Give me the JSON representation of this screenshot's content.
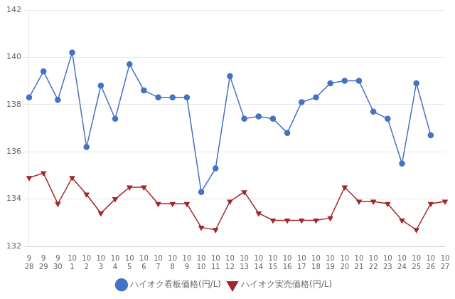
{
  "chart_data": {
    "type": "line",
    "categories": [
      "9\n28",
      "9\n29",
      "9\n30",
      "10\n1",
      "10\n2",
      "10\n3",
      "10\n4",
      "10\n5",
      "10\n6",
      "10\n7",
      "10\n8",
      "10\n9",
      "10\n10",
      "10\n11",
      "10\n12",
      "10\n13",
      "10\n14",
      "10\n15",
      "10\n16",
      "10\n17",
      "10\n18",
      "10\n19",
      "10\n20",
      "10\n21",
      "10\n22",
      "10\n23",
      "10\n24",
      "10\n25",
      "10\n26",
      "10\n27"
    ],
    "series": [
      {
        "name": "ハイオク看板価格(円/L)",
        "color": "#4472C4",
        "marker": "circle",
        "values": [
          138.3,
          139.4,
          138.2,
          140.2,
          136.2,
          138.8,
          137.4,
          139.7,
          138.6,
          138.3,
          138.3,
          138.3,
          134.3,
          135.3,
          139.2,
          137.4,
          137.5,
          137.4,
          136.8,
          138.1,
          138.3,
          138.9,
          139.0,
          139.0,
          137.7,
          137.4,
          135.5,
          138.9,
          136.7,
          null
        ]
      },
      {
        "name": "ハイオク実売価格(円/L)",
        "color": "#A0282A",
        "marker": "triangle_down",
        "values": [
          134.9,
          135.1,
          133.8,
          134.9,
          134.2,
          133.4,
          134.0,
          134.5,
          134.5,
          133.8,
          133.8,
          133.8,
          132.8,
          132.7,
          133.9,
          134.3,
          133.4,
          133.1,
          133.1,
          133.1,
          133.1,
          133.2,
          134.5,
          133.9,
          133.9,
          133.8,
          133.1,
          132.7,
          133.8,
          133.9
        ]
      }
    ],
    "ylim": [
      132,
      142
    ],
    "yticks": [
      132,
      134,
      136,
      138,
      140,
      142
    ],
    "grid": "y",
    "legend": "bottom"
  }
}
